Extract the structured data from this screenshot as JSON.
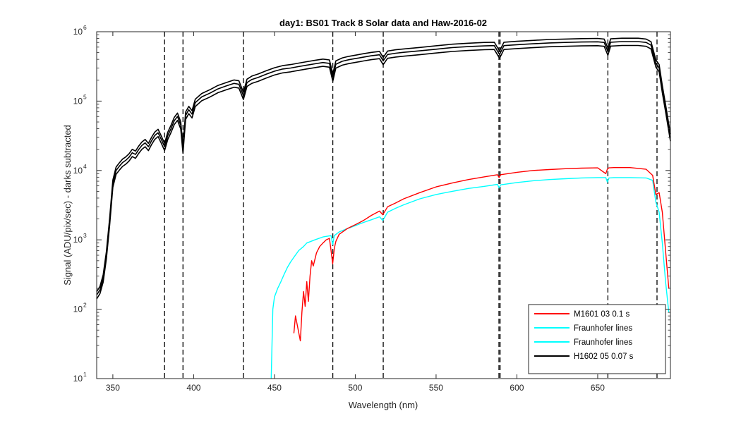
{
  "chart_data": {
    "type": "line",
    "title": "day1: BS01  Track 8 Solar data and Haw-2016-02",
    "xlabel": "Wavelength (nm)",
    "ylabel": "Signal (ADU/pix/sec) - darks subtracted",
    "xlim": [
      340,
      695
    ],
    "ylim": [
      10,
      1000000
    ],
    "yscale": "log",
    "grid": false,
    "legend_position": "bottom-right",
    "x_ticks": [
      350,
      400,
      450,
      500,
      550,
      600,
      650
    ],
    "x_tick_labels": [
      "350",
      "400",
      "450",
      "500",
      "550",
      "600",
      "650"
    ],
    "y_ticks": [
      10,
      100,
      1000,
      10000,
      100000,
      1000000
    ],
    "y_tick_bases": [
      "10",
      "10",
      "10",
      "10",
      "10",
      "10"
    ],
    "y_tick_exps": [
      "1",
      "2",
      "3",
      "4",
      "5",
      "6"
    ],
    "fraunhofer_lines_nm": [
      382.0,
      393.4,
      430.8,
      486.1,
      517.3,
      588.9,
      589.6,
      656.3,
      686.7
    ],
    "series": [
      {
        "name": "M1601 03 0.1 s",
        "color": "#ff0000",
        "x": [
          462,
          463,
          466,
          467,
          468,
          469,
          470,
          471,
          472,
          473,
          474,
          476,
          478,
          480,
          482,
          484,
          485,
          486,
          487,
          488,
          490,
          495,
          500,
          505,
          510,
          515,
          517,
          520,
          525,
          530,
          540,
          550,
          560,
          570,
          580,
          588,
          589,
          590,
          600,
          610,
          620,
          630,
          640,
          650,
          655,
          656,
          657,
          660,
          670,
          680,
          684,
          686,
          688,
          690,
          692,
          694
        ],
        "y": [
          45,
          80,
          35,
          90,
          180,
          110,
          250,
          130,
          300,
          500,
          420,
          650,
          800,
          900,
          1000,
          1050,
          700,
          450,
          750,
          950,
          1200,
          1450,
          1650,
          1900,
          2250,
          2600,
          2300,
          3000,
          3400,
          3900,
          4800,
          5800,
          6600,
          7400,
          8100,
          8700,
          7900,
          8700,
          9400,
          10000,
          10300,
          10600,
          10800,
          10900,
          9000,
          10500,
          10900,
          11000,
          11000,
          10400,
          8500,
          4500,
          4800,
          2500,
          700,
          200
        ]
      },
      {
        "name": "Fraunhofer lines",
        "color": "#00ffff",
        "x": [
          448,
          449,
          450,
          452,
          454,
          456,
          458,
          460,
          462,
          465,
          468,
          470,
          475,
          480,
          485,
          486,
          487,
          490,
          495,
          500,
          505,
          510,
          515,
          517,
          520,
          525,
          530,
          540,
          550,
          560,
          570,
          580,
          588,
          589,
          590,
          600,
          610,
          620,
          630,
          640,
          650,
          655,
          656,
          657,
          660,
          670,
          680,
          684,
          686,
          688,
          690,
          692,
          694
        ],
        "y": [
          10,
          100,
          150,
          200,
          250,
          320,
          400,
          480,
          560,
          700,
          800,
          900,
          1000,
          1100,
          1150,
          850,
          1150,
          1300,
          1450,
          1600,
          1780,
          1950,
          2150,
          1900,
          2500,
          2850,
          3200,
          3900,
          4500,
          5000,
          5500,
          5900,
          6300,
          5600,
          6200,
          6700,
          7100,
          7400,
          7600,
          7800,
          7900,
          7900,
          6800,
          7800,
          7900,
          7900,
          7800,
          7200,
          3500,
          2500,
          900,
          250,
          90
        ]
      },
      {
        "name": "Fraunhofer lines",
        "color": "#00ffff",
        "x": [],
        "y": []
      },
      {
        "name": "H1602 05 0.07 s",
        "color": "#000000",
        "x": [
          340,
          342,
          344,
          346,
          348,
          350,
          352,
          354,
          356,
          358,
          360,
          362,
          364,
          366,
          368,
          370,
          372,
          374,
          376,
          378,
          380,
          382,
          384,
          386,
          388,
          390,
          392,
          393.4,
          395,
          397,
          399,
          401,
          405,
          410,
          415,
          420,
          425,
          428,
          430.8,
          433,
          436,
          440,
          445,
          450,
          455,
          460,
          465,
          470,
          475,
          480,
          484,
          486.1,
          488,
          492,
          496,
          500,
          505,
          510,
          515,
          517.3,
          520,
          525,
          530,
          540,
          550,
          560,
          570,
          580,
          586,
          589.3,
          592,
          600,
          610,
          620,
          630,
          640,
          650,
          654,
          656.3,
          658,
          665,
          675,
          680,
          683,
          686,
          688,
          690,
          692,
          695
        ],
        "y": [
          160,
          190,
          280,
          600,
          1800,
          6500,
          10000,
          11500,
          13000,
          14000,
          15500,
          18000,
          17000,
          20000,
          23000,
          25000,
          22000,
          27000,
          32000,
          35000,
          28000,
          22000,
          32000,
          40000,
          52000,
          60000,
          45000,
          20000,
          62000,
          75000,
          65000,
          95000,
          115000,
          130000,
          150000,
          165000,
          180000,
          175000,
          120000,
          185000,
          205000,
          220000,
          245000,
          270000,
          290000,
          300000,
          315000,
          330000,
          345000,
          360000,
          350000,
          220000,
          340000,
          375000,
          395000,
          410000,
          430000,
          450000,
          465000,
          380000,
          470000,
          490000,
          505000,
          530000,
          560000,
          590000,
          610000,
          625000,
          630000,
          470000,
          630000,
          650000,
          670000,
          690000,
          700000,
          710000,
          715000,
          700000,
          520000,
          705000,
          720000,
          720000,
          700000,
          640000,
          350000,
          300000,
          150000,
          80000,
          30000
        ]
      }
    ]
  }
}
